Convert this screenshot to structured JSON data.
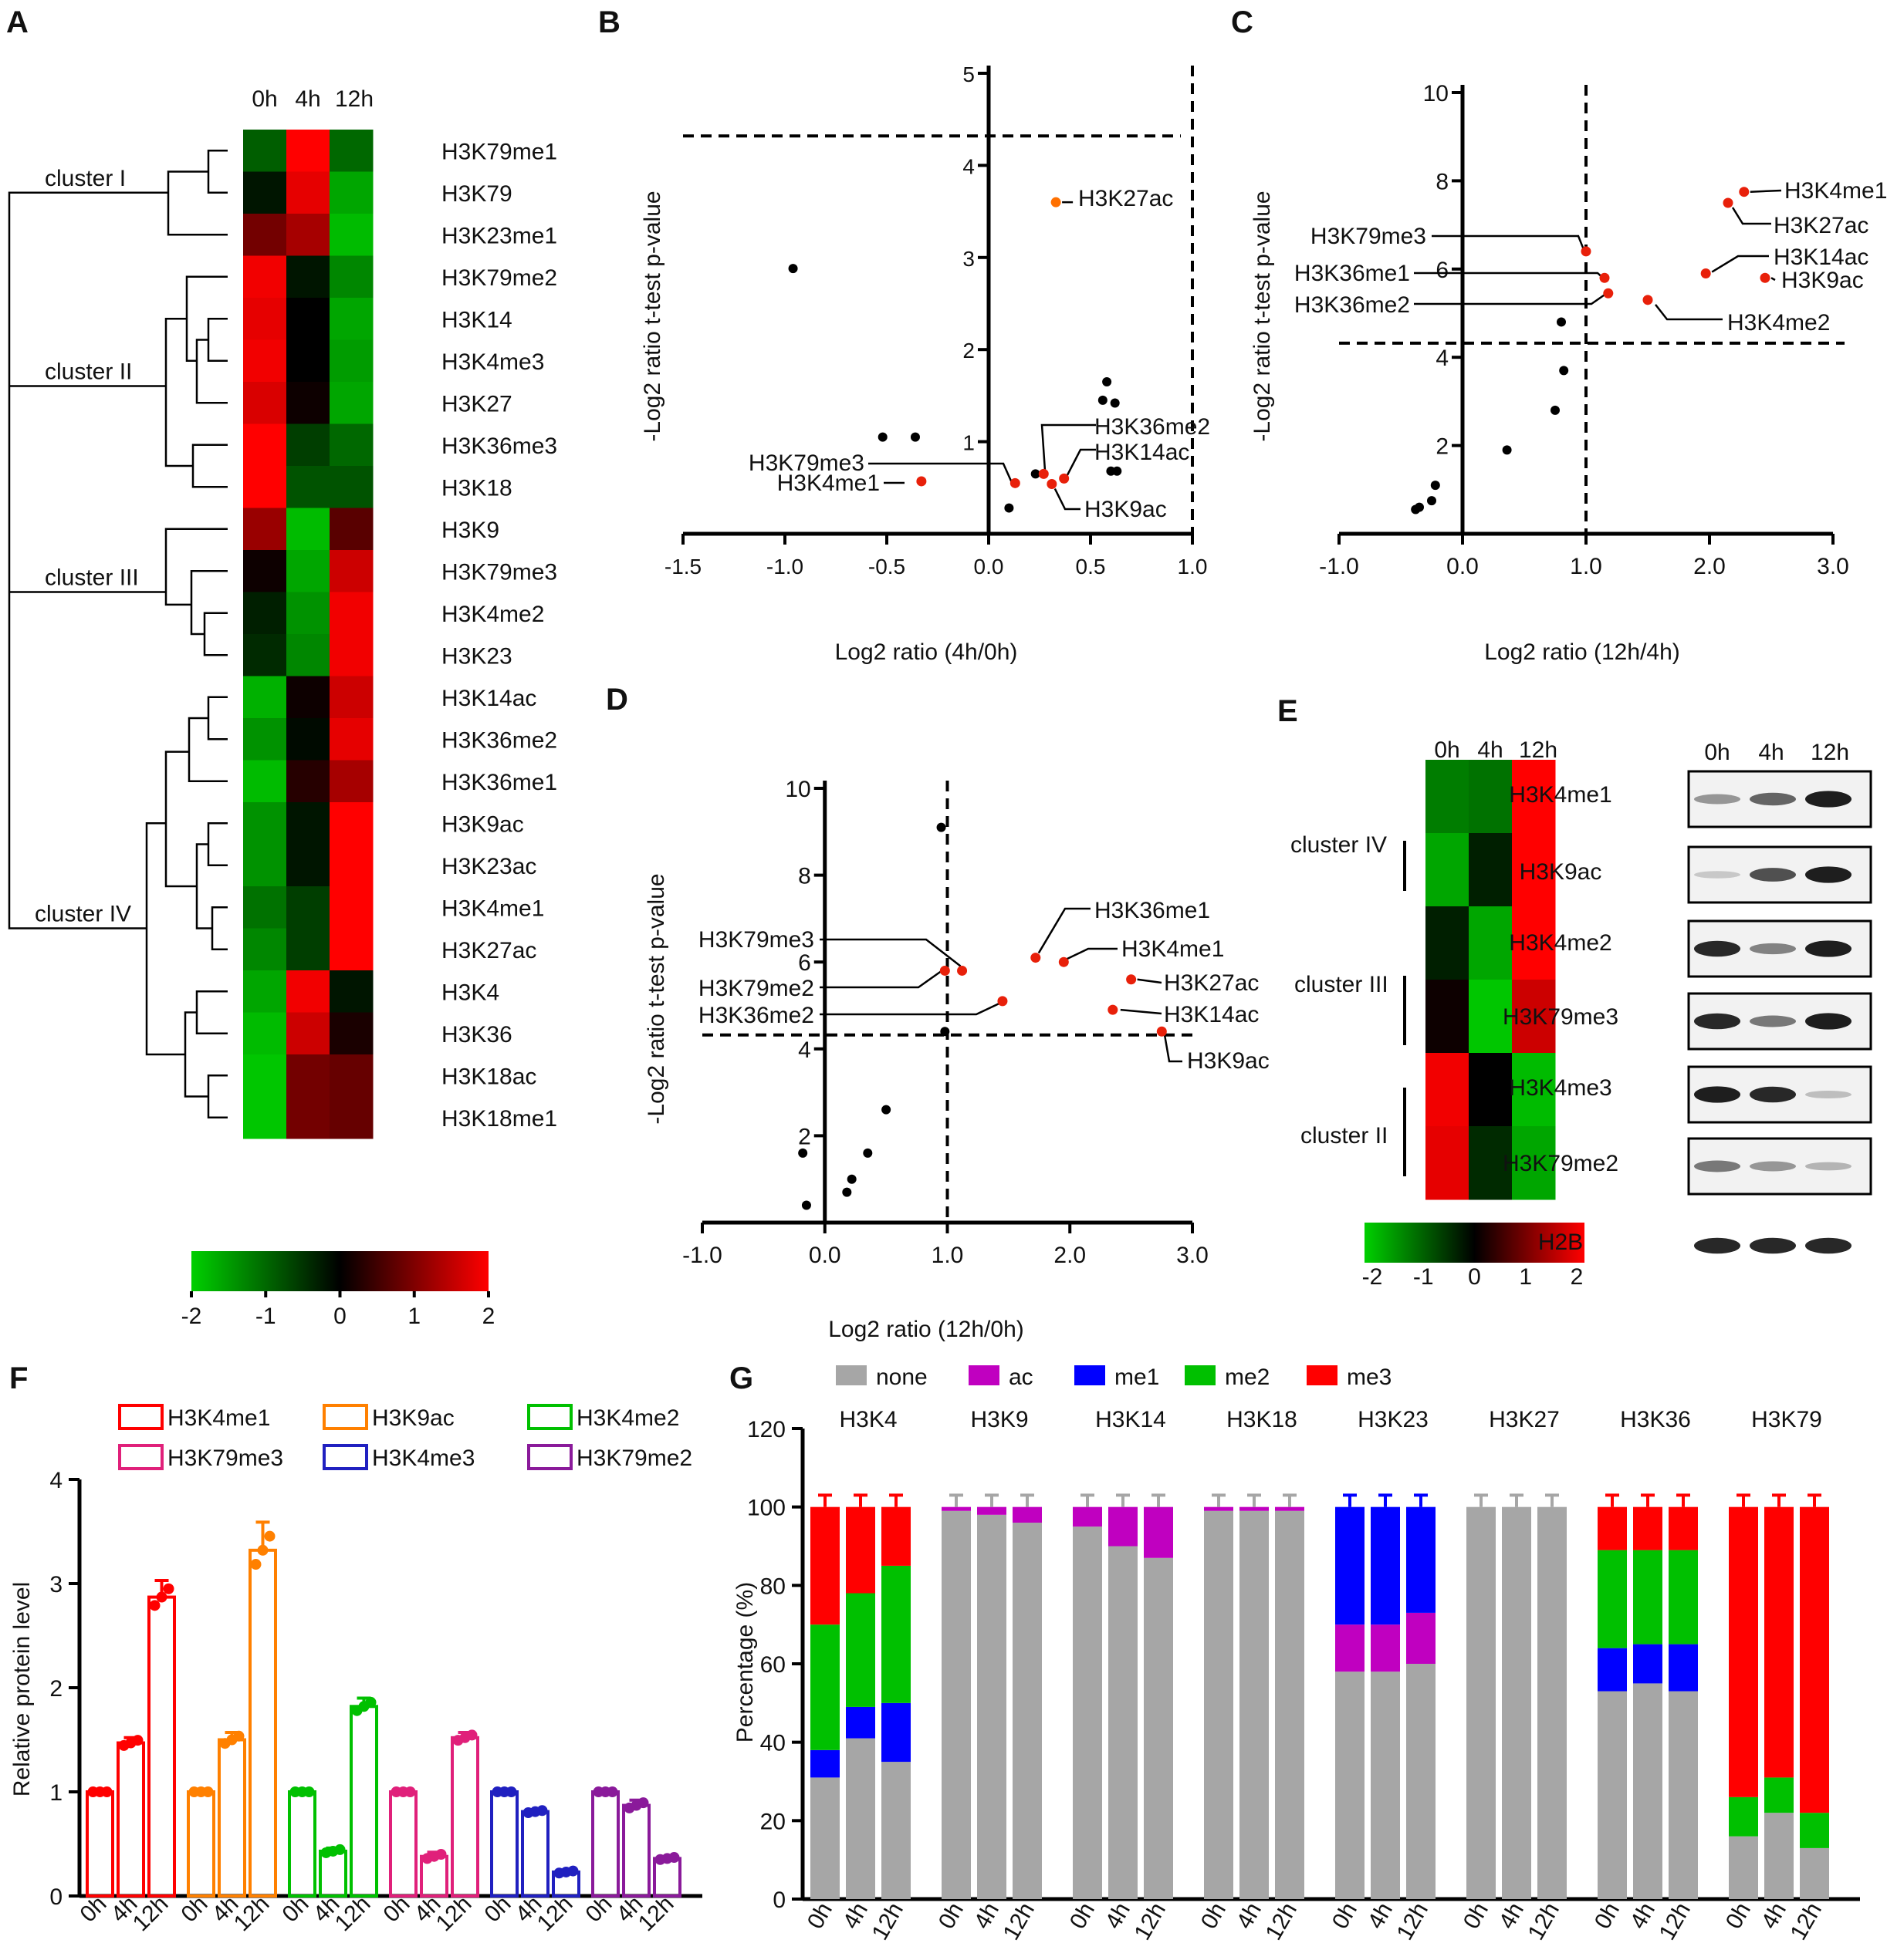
{
  "panel_letters": [
    "A",
    "B",
    "C",
    "D",
    "E",
    "F",
    "G"
  ],
  "colors": {
    "green": "#00d000",
    "black": "#000000",
    "red": "#ff0000",
    "gray": "#a6a6a6",
    "purple": "#c000c0",
    "blue": "#0000ff",
    "me2": "#00c000",
    "me3": "#ff0000"
  },
  "chart_data": [
    {
      "id": "A",
      "type": "heatmap",
      "columns": [
        "0h",
        "4h",
        "12h"
      ],
      "rows": [
        "H3K79me1",
        "H3K79",
        "H3K23me1",
        "H3K79me2",
        "H3K14",
        "H3K4me3",
        "H3K27",
        "H3K36me3",
        "H3K18",
        "H3K9",
        "H3K79me3",
        "H3K4me2",
        "H3K23",
        "H3K14ac",
        "H3K36me2",
        "H3K36me1",
        "H3K9ac",
        "H3K23ac",
        "H3K4me1",
        "H3K27ac",
        "H3K4",
        "H3K36",
        "H3K18ac",
        "H3K18me1"
      ],
      "values": [
        [
          -0.9,
          2,
          -1.0
        ],
        [
          -0.2,
          1.8,
          -1.6
        ],
        [
          0.9,
          1.3,
          -1.8
        ],
        [
          1.9,
          -0.2,
          -1.3
        ],
        [
          1.8,
          0,
          -1.6
        ],
        [
          1.9,
          0,
          -1.5
        ],
        [
          1.7,
          0.1,
          -1.6
        ],
        [
          2,
          -0.6,
          -1.0
        ],
        [
          2,
          -0.8,
          -0.8
        ],
        [
          1.2,
          -1.8,
          0.7
        ],
        [
          0.1,
          -1.6,
          1.6
        ],
        [
          -0.3,
          -1.4,
          1.9
        ],
        [
          -0.4,
          -1.3,
          1.9
        ],
        [
          -1.7,
          0.1,
          1.6
        ],
        [
          -1.4,
          -0.1,
          1.8
        ],
        [
          -1.8,
          0.3,
          1.3
        ],
        [
          -1.4,
          -0.2,
          2
        ],
        [
          -1.4,
          -0.2,
          2
        ],
        [
          -1.1,
          -0.6,
          2
        ],
        [
          -1.3,
          -0.6,
          2
        ],
        [
          -1.6,
          1.9,
          -0.2
        ],
        [
          -1.8,
          1.6,
          0.2
        ],
        [
          -1.9,
          0.9,
          0.8
        ],
        [
          -1.9,
          0.9,
          0.8
        ]
      ],
      "clusters": [
        "cluster I",
        "cluster II",
        "cluster III",
        "cluster IV"
      ],
      "colorbar": {
        "ticks": [
          "-2",
          "-1",
          "0",
          "1",
          "2"
        ],
        "range": [
          -2,
          2
        ]
      }
    },
    {
      "id": "B",
      "type": "scatter",
      "xlabel": "Log2 ratio (4h/0h)",
      "ylabel": "-Log2 ratio t-test p-value",
      "xlim": [
        -1.5,
        1.0
      ],
      "ylim": [
        0,
        5
      ],
      "xticks": [
        "-1.5",
        "-1.0",
        "-0.5",
        "0.0",
        "0.5",
        "1.0"
      ],
      "yticks": [
        "1",
        "2",
        "3",
        "4",
        "5"
      ],
      "threshold_y": 4.32,
      "threshold_x": 1.0,
      "points": [
        [
          -0.96,
          2.88
        ],
        [
          -0.52,
          1.05
        ],
        [
          -0.36,
          1.05
        ],
        [
          0.1,
          0.28
        ],
        [
          0.23,
          0.65
        ],
        [
          0.58,
          1.65
        ],
        [
          0.62,
          1.42
        ],
        [
          0.56,
          1.45
        ],
        [
          0.6,
          0.68
        ],
        [
          0.63,
          0.68
        ]
      ],
      "labeled": [
        {
          "x": 0.33,
          "y": 3.6,
          "label": "H3K27ac"
        },
        {
          "x": 0.27,
          "y": 0.65,
          "label": "H3K36me2"
        },
        {
          "x": 0.37,
          "y": 0.6,
          "label": "H3K14ac"
        },
        {
          "x": 0.13,
          "y": 0.55,
          "label": "H3K79me3"
        },
        {
          "x": -0.33,
          "y": 0.57,
          "label": "H3K4me1"
        },
        {
          "x": 0.31,
          "y": 0.54,
          "label": "H3K9ac"
        }
      ]
    },
    {
      "id": "C",
      "type": "scatter",
      "xlabel": "Log2 ratio (12h/4h)",
      "ylabel": "-Log2 ratio t-test p-value",
      "xlim": [
        -1.0,
        3.0
      ],
      "ylim": [
        0,
        10
      ],
      "xticks": [
        "-1.0",
        "0.0",
        "1.0",
        "2.0",
        "3.0"
      ],
      "yticks": [
        "2",
        "4",
        "6",
        "8",
        "10"
      ],
      "threshold_y": 4.32,
      "threshold_x": 1.0,
      "points": [
        [
          0.8,
          4.8
        ],
        [
          0.75,
          2.8
        ],
        [
          0.82,
          3.7
        ],
        [
          0.36,
          1.9
        ],
        [
          -0.22,
          1.1
        ],
        [
          -0.25,
          0.75
        ],
        [
          -0.35,
          0.6
        ],
        [
          -0.38,
          0.55
        ]
      ],
      "labeled": [
        {
          "x": 2.28,
          "y": 7.75,
          "label": "H3K4me1"
        },
        {
          "x": 2.15,
          "y": 7.5,
          "label": "H3K27ac"
        },
        {
          "x": 1.0,
          "y": 6.4,
          "label": "H3K79me3"
        },
        {
          "x": 1.97,
          "y": 5.9,
          "label": "H3K14ac"
        },
        {
          "x": 1.15,
          "y": 5.8,
          "label": "H3K36me1"
        },
        {
          "x": 2.45,
          "y": 5.8,
          "label": "H3K9ac"
        },
        {
          "x": 1.18,
          "y": 5.45,
          "label": "H3K36me2"
        },
        {
          "x": 1.5,
          "y": 5.3,
          "label": "H3K4me2"
        }
      ]
    },
    {
      "id": "D",
      "type": "scatter",
      "xlabel": "Log2 ratio (12h/0h)",
      "ylabel": "-Log2 ratio t-test p-value",
      "xlim": [
        -1.0,
        3.0
      ],
      "ylim": [
        0,
        10
      ],
      "xticks": [
        "-1.0",
        "0.0",
        "1.0",
        "2.0",
        "3.0"
      ],
      "yticks": [
        "2",
        "4",
        "6",
        "8",
        "10"
      ],
      "threshold_y": 4.32,
      "threshold_x": 1.0,
      "points": [
        [
          0.95,
          9.1
        ],
        [
          0.5,
          2.6
        ],
        [
          0.35,
          1.6
        ],
        [
          0.22,
          1.0
        ],
        [
          0.18,
          0.7
        ],
        [
          -0.15,
          0.4
        ],
        [
          -0.18,
          1.6
        ],
        [
          0.98,
          4.4
        ]
      ],
      "labeled": [
        {
          "x": 1.72,
          "y": 6.1,
          "label": "H3K36me1"
        },
        {
          "x": 1.95,
          "y": 6.0,
          "label": "H3K4me1"
        },
        {
          "x": 1.12,
          "y": 5.8,
          "label": "H3K79me3"
        },
        {
          "x": 0.98,
          "y": 5.8,
          "label": "H3K79me2"
        },
        {
          "x": 2.5,
          "y": 5.6,
          "label": "H3K27ac"
        },
        {
          "x": 1.45,
          "y": 5.1,
          "label": "H3K36me2"
        },
        {
          "x": 2.35,
          "y": 4.9,
          "label": "H3K14ac"
        },
        {
          "x": 2.75,
          "y": 4.4,
          "label": "H3K9ac"
        }
      ]
    },
    {
      "id": "E",
      "type": "heatmap",
      "columns": [
        "0h",
        "4h",
        "12h"
      ],
      "rows": [
        "H3K4me1",
        "H3K9ac",
        "H3K4me2",
        "H3K79me3",
        "H3K4me3",
        "H3K79me2"
      ],
      "values": [
        [
          -1.2,
          -1.1,
          2
        ],
        [
          -1.6,
          -0.3,
          2
        ],
        [
          -0.3,
          -1.6,
          2
        ],
        [
          0.1,
          -1.9,
          1.6
        ],
        [
          1.9,
          0,
          -1.8
        ],
        [
          1.8,
          -0.4,
          -1.6
        ]
      ],
      "clusters": [
        "cluster IV",
        "cluster III",
        "cluster II"
      ],
      "colorbar": {
        "ticks": [
          "-2",
          "-1",
          "0",
          "1",
          "2"
        ],
        "range": [
          -2,
          2
        ]
      },
      "blot_lanes": [
        "0h",
        "4h",
        "12h"
      ],
      "blot_rows": [
        "H3K4me1",
        "H3K9ac",
        "H3K4me2",
        "H3K79me3",
        "H3K4me3",
        "H3K79me2",
        "H2B"
      ],
      "blot_intensity": [
        [
          0.35,
          0.6,
          0.95
        ],
        [
          0.1,
          0.7,
          0.95
        ],
        [
          0.9,
          0.45,
          0.95
        ],
        [
          0.9,
          0.5,
          0.95
        ],
        [
          0.95,
          0.9,
          0.15
        ],
        [
          0.5,
          0.35,
          0.2
        ],
        [
          0.9,
          0.9,
          0.9
        ]
      ]
    },
    {
      "id": "F",
      "type": "bar",
      "ylabel": "Relative protein level",
      "ylim": [
        0,
        4
      ],
      "yticks": [
        "0",
        "1",
        "2",
        "3",
        "4"
      ],
      "categories": [
        "0h",
        "4h",
        "12h"
      ],
      "series": [
        {
          "name": "H3K4me1",
          "color": "#ff0000",
          "values": [
            1.0,
            1.47,
            2.87
          ],
          "errors": [
            0,
            0.05,
            0.16
          ]
        },
        {
          "name": "H3K9ac",
          "color": "#ff8000",
          "values": [
            1.0,
            1.5,
            3.32
          ],
          "errors": [
            0,
            0.07,
            0.27
          ]
        },
        {
          "name": "H3K4me2",
          "color": "#00c000",
          "values": [
            1.0,
            0.43,
            1.82
          ],
          "errors": [
            0,
            0.03,
            0.08
          ]
        },
        {
          "name": "H3K79me3",
          "color": "#e0207a",
          "values": [
            1.0,
            0.38,
            1.52
          ],
          "errors": [
            0,
            0.04,
            0.05
          ]
        },
        {
          "name": "H3K4me3",
          "color": "#2020c0",
          "values": [
            1.0,
            0.81,
            0.23
          ],
          "errors": [
            0,
            0.02,
            0.02
          ]
        },
        {
          "name": "H3K79me2",
          "color": "#8a1a9a",
          "values": [
            1.0,
            0.87,
            0.36
          ],
          "errors": [
            0,
            0.05,
            0.02
          ]
        }
      ]
    },
    {
      "id": "G",
      "type": "bar",
      "stacked": true,
      "ylabel": "Percentage (%)",
      "ylim": [
        0,
        120
      ],
      "yticks": [
        "0",
        "20",
        "40",
        "60",
        "80",
        "100",
        "120"
      ],
      "legend": [
        "none",
        "ac",
        "me1",
        "me2",
        "me3"
      ],
      "timepoints": [
        "0h",
        "4h",
        "12h"
      ],
      "groups": [
        {
          "name": "H3K4",
          "bars": [
            [
              31,
              0,
              7,
              32,
              30
            ],
            [
              41,
              0,
              8,
              29,
              22
            ],
            [
              35,
              0,
              15,
              35,
              15
            ]
          ]
        },
        {
          "name": "H3K9",
          "bars": [
            [
              99,
              1,
              0,
              0,
              0
            ],
            [
              98,
              2,
              0,
              0,
              0
            ],
            [
              96,
              4,
              0,
              0,
              0
            ]
          ]
        },
        {
          "name": "H3K14",
          "bars": [
            [
              95,
              5,
              0,
              0,
              0
            ],
            [
              90,
              10,
              0,
              0,
              0
            ],
            [
              87,
              13,
              0,
              0,
              0
            ]
          ]
        },
        {
          "name": "H3K18",
          "bars": [
            [
              99,
              1,
              0,
              0,
              0
            ],
            [
              99,
              1,
              0,
              0,
              0
            ],
            [
              99,
              1,
              0,
              0,
              0
            ]
          ]
        },
        {
          "name": "H3K23",
          "bars": [
            [
              58,
              12,
              30,
              0,
              0
            ],
            [
              58,
              12,
              30,
              0,
              0
            ],
            [
              60,
              13,
              27,
              0,
              0
            ]
          ]
        },
        {
          "name": "H3K27",
          "bars": [
            [
              100,
              0,
              0,
              0,
              0
            ],
            [
              100,
              0,
              0,
              0,
              0
            ],
            [
              100,
              0,
              0,
              0,
              0
            ]
          ]
        },
        {
          "name": "H3K36",
          "bars": [
            [
              53,
              0,
              11,
              25,
              11
            ],
            [
              55,
              0,
              10,
              24,
              11
            ],
            [
              53,
              0,
              12,
              24,
              11
            ]
          ]
        },
        {
          "name": "H3K79",
          "bars": [
            [
              16,
              0,
              0,
              10,
              74
            ],
            [
              22,
              0,
              0,
              9,
              69
            ],
            [
              13,
              0,
              0,
              9,
              78
            ]
          ]
        }
      ]
    }
  ]
}
